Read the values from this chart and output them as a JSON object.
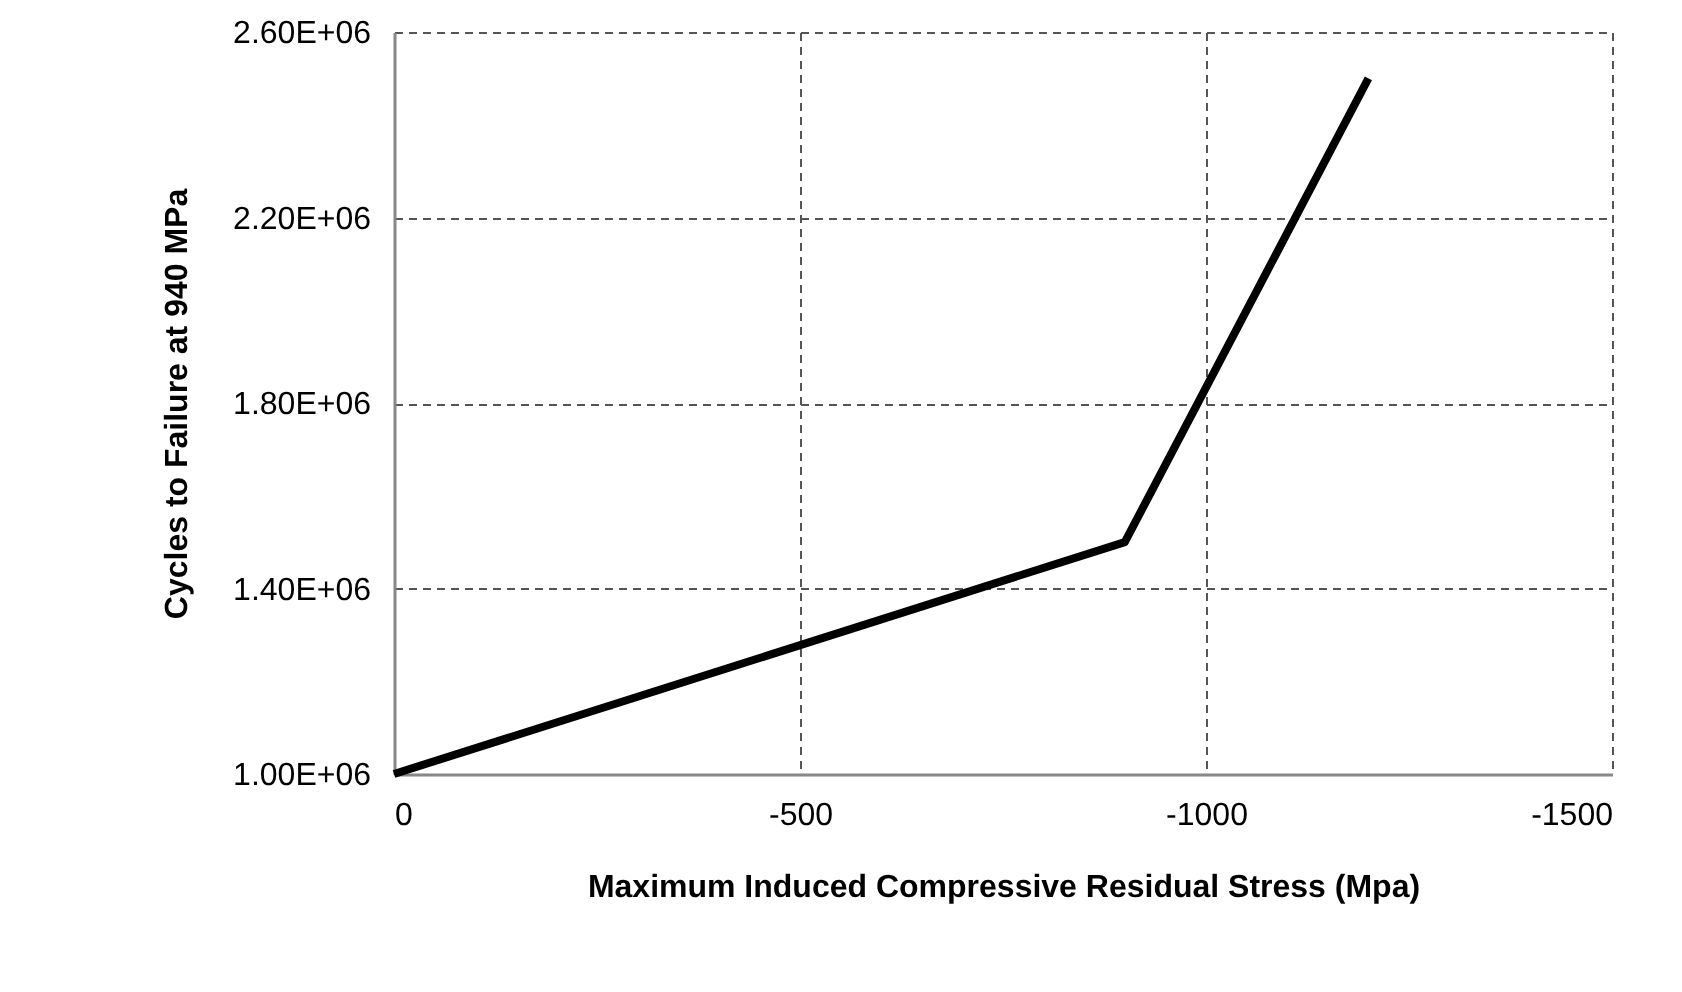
{
  "chart_data": {
    "type": "line",
    "xlabel": "Maximum Induced Compressive Residual Stress (Mpa)",
    "ylabel": "Cycles to Failure at 940 MPa",
    "x": [
      0,
      -900,
      -1200
    ],
    "series": [
      {
        "color": "#000000",
        "values": [
          1000000,
          1500000,
          2500000
        ]
      }
    ],
    "xlim": [
      0,
      -1500
    ],
    "xticks": [
      0,
      -500,
      -1000,
      -1500
    ],
    "ylim": [
      1000000,
      2600000
    ],
    "yticks": [
      {
        "value": 1000000,
        "label": "1.00E+06"
      },
      {
        "value": 1400000,
        "label": "1.40E+06"
      },
      {
        "value": 1800000,
        "label": "1.80E+06"
      },
      {
        "value": 2200000,
        "label": "2.20E+06"
      },
      {
        "value": 2600000,
        "label": "2.60E+06"
      }
    ],
    "grid": true,
    "marker": "none",
    "line_style": "solid"
  }
}
